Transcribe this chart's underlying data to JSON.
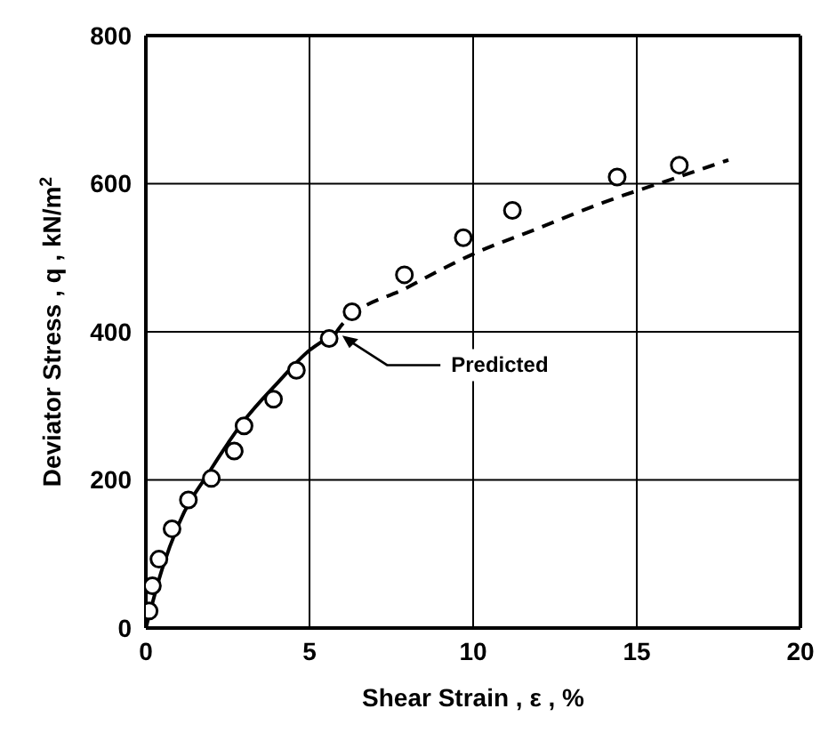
{
  "chart_data": {
    "type": "scatter",
    "xlabel": "Shear Strain , ε , %",
    "ylabel": "Deviator Stress , q , kN/m$^{2}$",
    "xlim": [
      0,
      20
    ],
    "xticks": [
      0,
      5,
      10,
      15,
      20
    ],
    "ylim": [
      0,
      800
    ],
    "yticks": [
      0,
      200,
      400,
      600,
      800
    ],
    "grid": true,
    "legend": false,
    "series": [
      {
        "marker": "circle",
        "color": "#000000",
        "x": [
          0.1,
          0.2,
          0.4,
          0.8,
          1.3,
          2.0,
          2.7,
          3.0,
          3.9,
          4.6,
          5.6,
          6.3,
          7.9,
          9.7,
          11.2,
          14.4,
          16.3
        ],
        "values": [
          23,
          57,
          93,
          134,
          173,
          202,
          239,
          273,
          309,
          348,
          391,
          427,
          477,
          527,
          564,
          609,
          625
        ]
      },
      {
        "type": "line",
        "line_style": "solid",
        "color": "#000000",
        "x": [
          0,
          0.5,
          1,
          2,
          3,
          4,
          5,
          5.8
        ],
        "values": [
          0,
          80,
          140,
          215,
          280,
          330,
          375,
          398
        ]
      },
      {
        "type": "line",
        "line_style": "dashed",
        "color": "#000000",
        "x": [
          5.8,
          6,
          8,
          10,
          12,
          14,
          16,
          17.8
        ],
        "values": [
          398,
          410,
          460,
          505,
          540,
          575,
          605,
          632
        ]
      }
    ],
    "annotations": [
      {
        "text": "Predicted",
        "x": 6,
        "y": 395
      }
    ]
  }
}
